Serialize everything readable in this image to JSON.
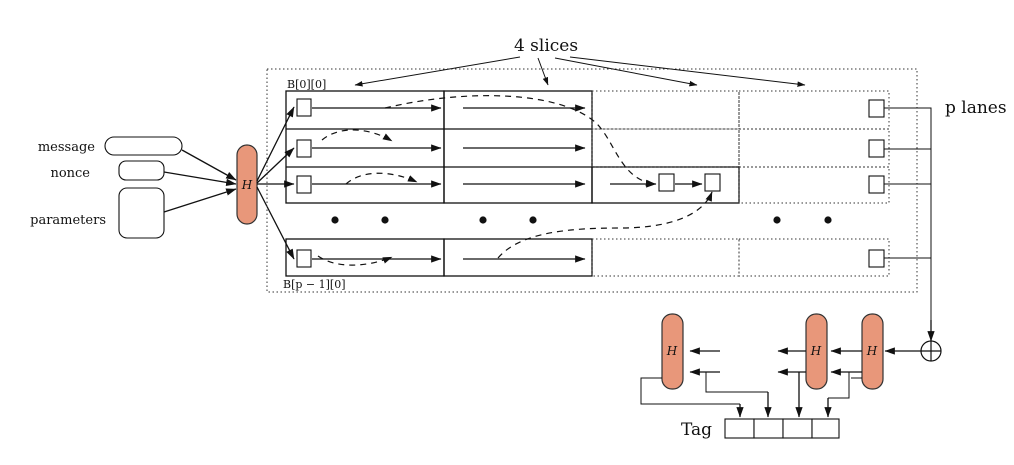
{
  "inputs": {
    "message": "message",
    "nonce": "nonce",
    "parameters": "parameters"
  },
  "labels": {
    "slices": "4 slices",
    "lanes": "p lanes",
    "first_block": "B[0][0]",
    "last_block": "B[p − 1][0]",
    "tag": "Tag",
    "hash": "H"
  },
  "colors": {
    "hash_fill": "#e8977a",
    "stroke": "#111111"
  },
  "icons": {
    "xor": "circled-plus-icon"
  }
}
